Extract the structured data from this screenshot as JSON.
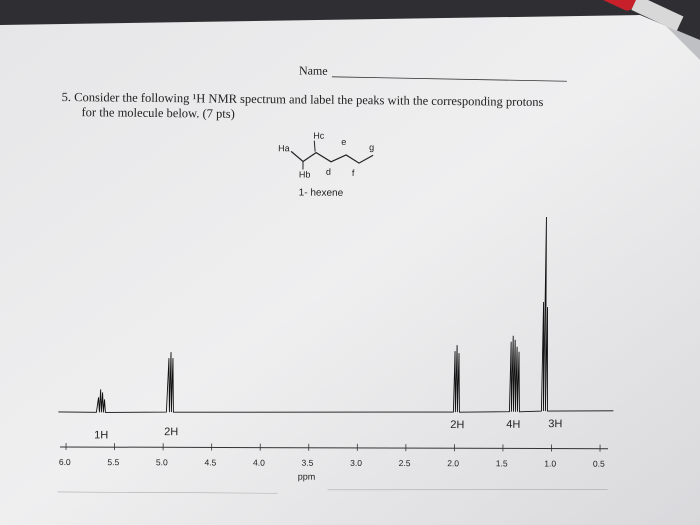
{
  "header": {
    "name_label": "Name"
  },
  "question": {
    "lines": [
      "5. Consider the following ¹H NMR spectrum and label the peaks with the corresponding protons",
      "for the molecule below. (7 pts)"
    ]
  },
  "molecule": {
    "labels": [
      "Hc",
      "e",
      "g",
      "Ha",
      "Hb",
      "d",
      "f"
    ],
    "name": "1- hexene"
  },
  "spectrum": {
    "integrations": [
      "1H",
      "2H",
      "2H",
      "4H",
      "3H"
    ],
    "ticks": [
      "6.0",
      "5.5",
      "5.0",
      "4.5",
      "4.0",
      "3.5",
      "3.0",
      "2.5",
      "2.0",
      "1.5",
      "1.0",
      "0.5"
    ],
    "axis_label": "ppm"
  }
}
